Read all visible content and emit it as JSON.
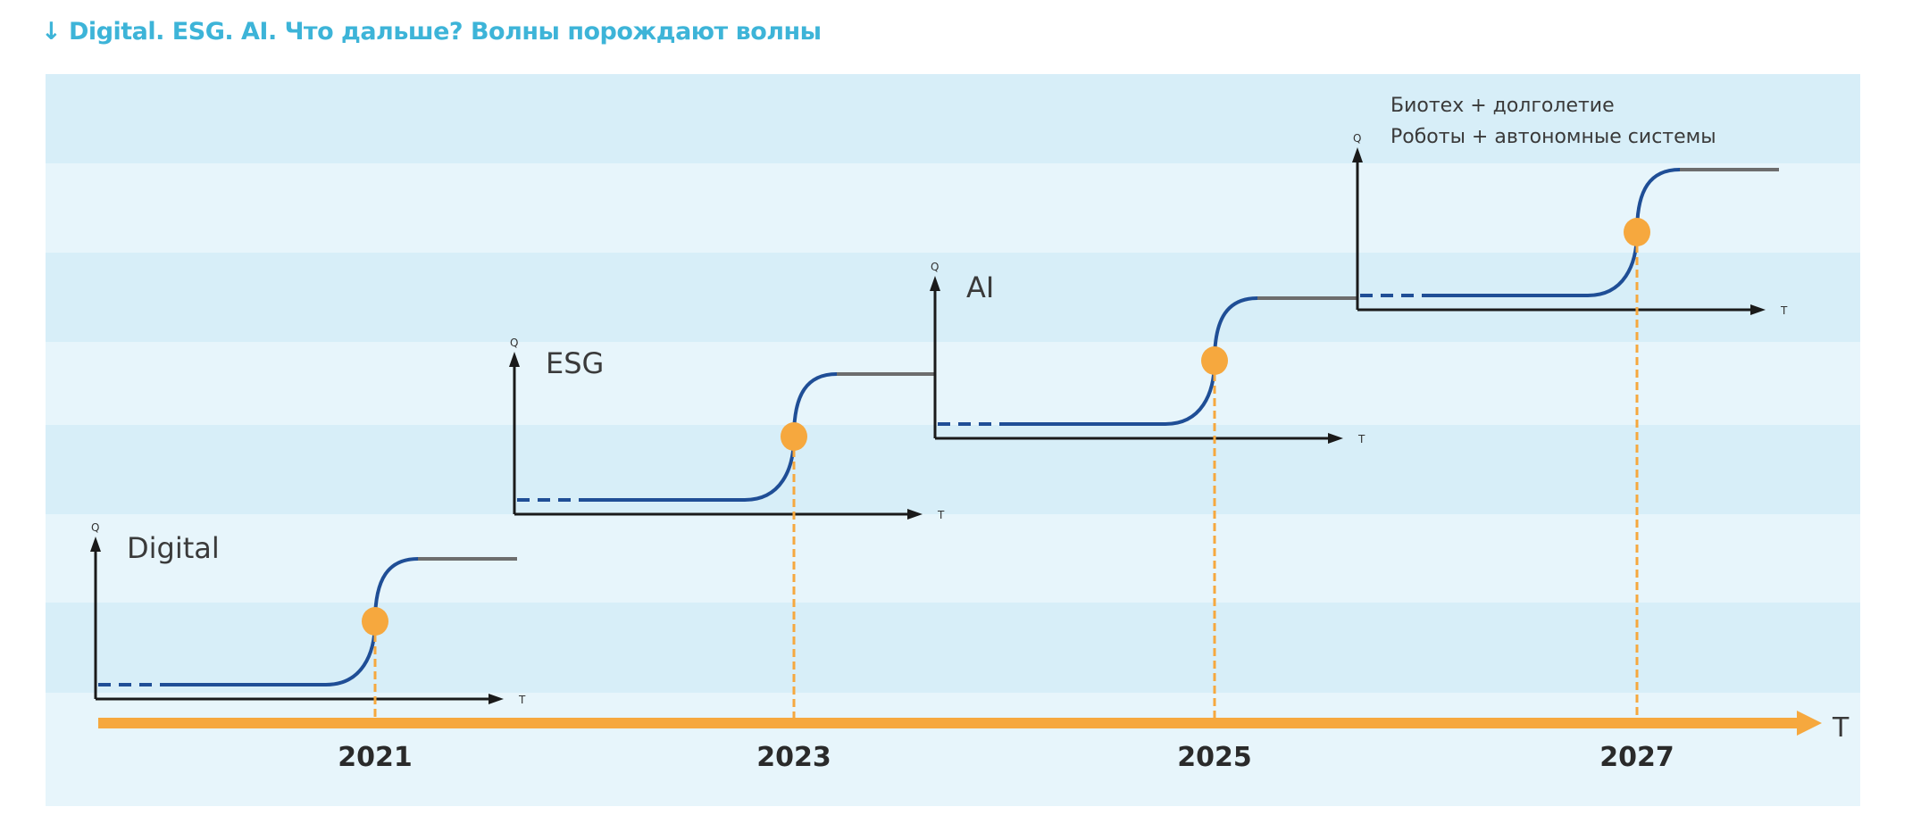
{
  "title": "↓ Digital. ESG. AI. Что дальше? Волны порождают волны",
  "main_axis_label": "T",
  "wave_axis_labels": {
    "y": "Q",
    "x": "T"
  },
  "waves": [
    {
      "label_lines": [
        "Digital"
      ],
      "year": "2021"
    },
    {
      "label_lines": [
        "ESG"
      ],
      "year": "2023"
    },
    {
      "label_lines": [
        "AI"
      ],
      "year": "2025"
    },
    {
      "label_lines": [
        "Биотех + долголетие",
        "Роботы + автономные системы"
      ],
      "year": "2027"
    }
  ],
  "colors": {
    "title": "#3db4d8",
    "band_dark": "#d7eef8",
    "band_light": "#e7f5fb",
    "curve": "#1f4e96",
    "plateau": "#6d6d6d",
    "timeline": "#f6a83e",
    "axis": "#1a1a1a"
  }
}
